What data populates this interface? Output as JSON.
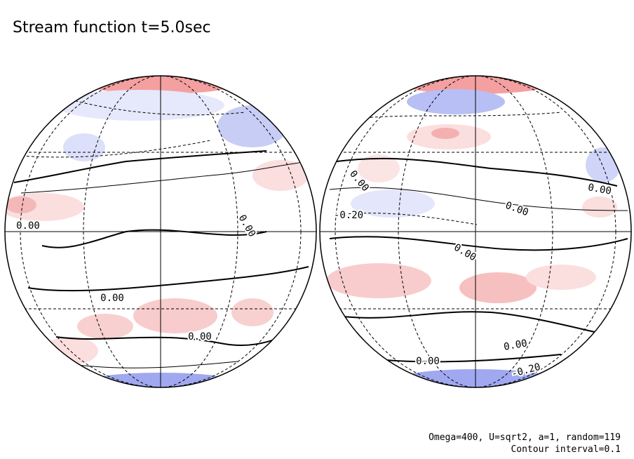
{
  "title": "Stream function t=5.0sec",
  "globes": [
    {
      "contour_labels": [
        "0.00",
        "0.00",
        "0.00",
        "0.00"
      ]
    },
    {
      "contour_labels": [
        "0.00",
        "-0.20",
        "0.00",
        "0.00",
        "0.00",
        "0.00",
        "0.00",
        "-0.20"
      ]
    }
  ],
  "footer": [
    "Omega=400, U=sqrt2, a=1, random=119",
    "Contour interval=0.1"
  ]
}
